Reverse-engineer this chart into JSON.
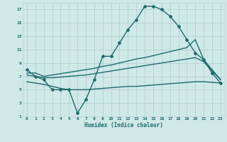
{
  "xlabel": "Humidex (Indice chaleur)",
  "xlim": [
    -0.5,
    23.5
  ],
  "ylim": [
    1,
    18
  ],
  "xticks": [
    0,
    1,
    2,
    3,
    4,
    5,
    6,
    7,
    8,
    9,
    10,
    11,
    12,
    13,
    14,
    15,
    16,
    17,
    18,
    19,
    20,
    21,
    22,
    23
  ],
  "yticks": [
    1,
    3,
    5,
    7,
    9,
    11,
    13,
    15,
    17
  ],
  "background_color": "#cfe8e8",
  "grid_color": "#b8d4d4",
  "line_color": "#1e6b6b",
  "lines": [
    {
      "x": [
        0,
        1,
        2,
        3,
        4,
        5,
        6,
        7,
        8,
        9,
        10,
        11,
        12,
        13,
        14,
        15,
        16,
        17,
        18,
        19,
        20,
        21,
        22,
        23
      ],
      "y": [
        8,
        7,
        6.5,
        5,
        5,
        5,
        1.5,
        3.5,
        6.5,
        10,
        10,
        12,
        14,
        15.5,
        17.5,
        17.5,
        17,
        16,
        14.5,
        12.5,
        10.5,
        9.5,
        7.5,
        6
      ],
      "marker": "D",
      "markersize": 2.0,
      "linewidth": 1.0
    },
    {
      "x": [
        0,
        1,
        2,
        3,
        4,
        5,
        6,
        7,
        8,
        9,
        10,
        11,
        12,
        13,
        14,
        15,
        16,
        17,
        18,
        19,
        20,
        21,
        22,
        23
      ],
      "y": [
        7.5,
        7.5,
        7.0,
        7.2,
        7.4,
        7.6,
        7.8,
        8.0,
        8.2,
        8.5,
        8.7,
        9.0,
        9.3,
        9.6,
        9.8,
        10.1,
        10.4,
        10.7,
        11.0,
        11.3,
        12.5,
        9.5,
        8.0,
        6.5
      ],
      "marker": null,
      "markersize": 0,
      "linewidth": 1.0
    },
    {
      "x": [
        0,
        1,
        2,
        3,
        4,
        5,
        6,
        7,
        8,
        9,
        10,
        11,
        12,
        13,
        14,
        15,
        16,
        17,
        18,
        19,
        20,
        21,
        22,
        23
      ],
      "y": [
        7.2,
        7.0,
        6.8,
        6.8,
        6.9,
        7.0,
        7.1,
        7.2,
        7.4,
        7.6,
        7.8,
        8.0,
        8.2,
        8.4,
        8.6,
        8.8,
        9.0,
        9.2,
        9.4,
        9.6,
        9.8,
        9.2,
        7.8,
        6.5
      ],
      "marker": null,
      "markersize": 0,
      "linewidth": 1.0
    },
    {
      "x": [
        0,
        1,
        2,
        3,
        4,
        5,
        6,
        7,
        8,
        9,
        10,
        11,
        12,
        13,
        14,
        15,
        16,
        17,
        18,
        19,
        20,
        21,
        22,
        23
      ],
      "y": [
        6.2,
        6.0,
        5.8,
        5.5,
        5.2,
        5.0,
        5.0,
        5.0,
        5.1,
        5.2,
        5.3,
        5.4,
        5.5,
        5.5,
        5.6,
        5.7,
        5.8,
        5.9,
        6.0,
        6.1,
        6.2,
        6.2,
        6.1,
        6.0
      ],
      "marker": null,
      "markersize": 0,
      "linewidth": 1.0
    }
  ]
}
